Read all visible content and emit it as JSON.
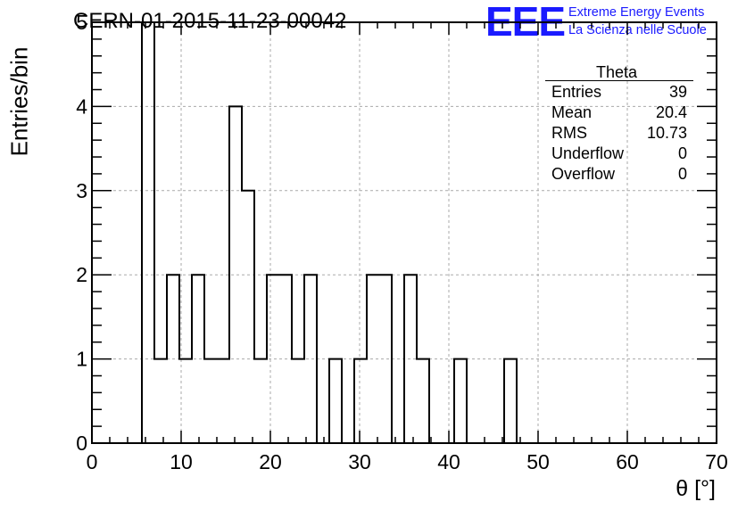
{
  "chart_data": {
    "type": "histogram",
    "title": "CERN-01-2015-11-23-00042",
    "xlabel": "θ [°]",
    "ylabel": "Entries/bin",
    "xlim": [
      0,
      70
    ],
    "ylim": [
      0,
      5
    ],
    "x_ticks": [
      "0",
      "10",
      "20",
      "30",
      "40",
      "50",
      "60",
      "70"
    ],
    "y_ticks": [
      "0",
      "1",
      "2",
      "3",
      "4",
      "5"
    ],
    "grid": true,
    "bin_width": 1.4,
    "bin_start": 5.6,
    "values": [
      5,
      1,
      2,
      1,
      2,
      1,
      1,
      4,
      3,
      1,
      2,
      2,
      1,
      2,
      0,
      1,
      0,
      1,
      2,
      2,
      0,
      2,
      1,
      0,
      0,
      1,
      0,
      0,
      0,
      1,
      0
    ]
  },
  "stats_box": {
    "name": "Theta",
    "rows": [
      {
        "label": "Entries",
        "value": "39"
      },
      {
        "label": "Mean",
        "value": "20.4"
      },
      {
        "label": "RMS",
        "value": "10.73"
      },
      {
        "label": "Underflow",
        "value": "0"
      },
      {
        "label": "Overflow",
        "value": "0"
      }
    ]
  },
  "logo": {
    "mark": "EEE",
    "line1": "Extreme Energy Events",
    "line2": "La Scienza nelle Scuole",
    "color": "#1a1aff"
  }
}
